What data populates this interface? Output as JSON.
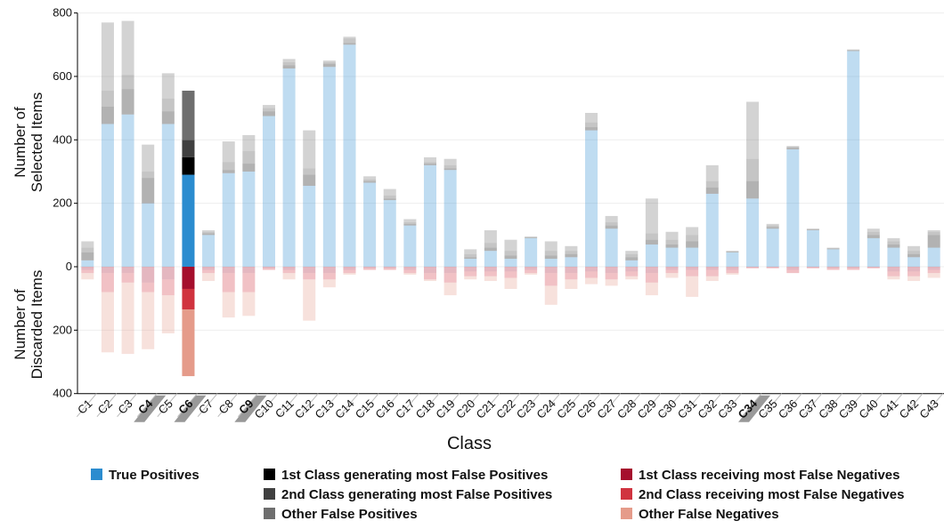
{
  "chart_data": {
    "type": "diverging-stacked-bar",
    "y_label_selected": [
      "Number of",
      "Selected Items"
    ],
    "y_label_discarded": [
      "Number of",
      "Discarded Items"
    ],
    "x_label": "Class",
    "categories": [
      "C1",
      "C2",
      "C3",
      "C4",
      "C5",
      "C6",
      "C7",
      "C8",
      "C9",
      "C10",
      "C11",
      "C12",
      "C13",
      "C14",
      "C15",
      "C16",
      "C17",
      "C18",
      "C19",
      "C20",
      "C21",
      "C22",
      "C23",
      "C24",
      "C25",
      "C26",
      "C27",
      "C28",
      "C29",
      "C30",
      "C31",
      "C32",
      "C33",
      "C34",
      "C35",
      "C36",
      "C37",
      "C38",
      "C39",
      "C40",
      "C41",
      "C42",
      "C43"
    ],
    "focus_category": 5,
    "highlighted_categories": [
      3,
      5,
      8,
      33
    ],
    "ylim": [
      -400,
      800
    ],
    "yticks": [
      {
        "value": -400,
        "label": "400"
      },
      {
        "value": -200,
        "label": "200"
      },
      0,
      200,
      400,
      600,
      800
    ],
    "grid": true,
    "series": [
      {
        "name": "True Positives",
        "color": "#2b8ccf",
        "side": "selected",
        "values": [
          20,
          450,
          480,
          200,
          450,
          290,
          100,
          295,
          300,
          475,
          625,
          255,
          630,
          700,
          265,
          210,
          130,
          320,
          305,
          25,
          50,
          25,
          90,
          25,
          30,
          430,
          120,
          20,
          70,
          60,
          60,
          230,
          45,
          215,
          120,
          370,
          115,
          55,
          680,
          90,
          60,
          30,
          60
        ]
      },
      {
        "name": "1st Class generating most False Positives",
        "color": "#000000",
        "side": "selected",
        "values": [
          25,
          55,
          80,
          80,
          40,
          55,
          5,
          10,
          25,
          15,
          10,
          35,
          10,
          5,
          5,
          5,
          5,
          5,
          5,
          5,
          10,
          10,
          2,
          10,
          10,
          10,
          10,
          10,
          15,
          10,
          20,
          20,
          2,
          55,
          5,
          5,
          2,
          2,
          2,
          10,
          10,
          10,
          40
        ]
      },
      {
        "name": "2nd Class generating most False Positives",
        "color": "#404040",
        "side": "selected",
        "values": [
          15,
          50,
          45,
          20,
          40,
          55,
          5,
          25,
          40,
          10,
          10,
          20,
          5,
          15,
          5,
          10,
          5,
          5,
          10,
          10,
          15,
          15,
          2,
          15,
          10,
          15,
          10,
          10,
          20,
          15,
          20,
          20,
          2,
          70,
          5,
          5,
          2,
          2,
          2,
          10,
          10,
          10,
          10
        ]
      },
      {
        "name": "Other False Positives",
        "color": "#6e6e6e",
        "side": "selected",
        "values": [
          20,
          215,
          170,
          85,
          80,
          155,
          5,
          65,
          50,
          10,
          10,
          120,
          5,
          5,
          10,
          20,
          10,
          15,
          20,
          15,
          40,
          35,
          1,
          30,
          15,
          30,
          20,
          10,
          110,
          25,
          25,
          50,
          1,
          180,
          5,
          0,
          1,
          1,
          1,
          10,
          10,
          15,
          5
        ]
      },
      {
        "name": "1st Class receiving most False Negatives",
        "color": "#a50f2d",
        "side": "discarded",
        "values": [
          10,
          20,
          20,
          50,
          40,
          70,
          10,
          20,
          20,
          5,
          10,
          20,
          20,
          10,
          5,
          5,
          10,
          20,
          20,
          15,
          15,
          15,
          10,
          20,
          20,
          15,
          20,
          15,
          20,
          10,
          10,
          10,
          10,
          3,
          3,
          10,
          3,
          5,
          5,
          3,
          15,
          15,
          10
        ]
      },
      {
        "name": "2nd Class receiving most False Negatives",
        "color": "#d0333f",
        "side": "discarded",
        "values": [
          10,
          60,
          30,
          30,
          50,
          65,
          10,
          60,
          60,
          5,
          10,
          20,
          20,
          10,
          5,
          5,
          10,
          20,
          30,
          15,
          15,
          20,
          10,
          40,
          20,
          20,
          20,
          15,
          30,
          10,
          20,
          20,
          10,
          2,
          2,
          10,
          2,
          5,
          5,
          2,
          15,
          15,
          10
        ]
      },
      {
        "name": "Other False Negatives",
        "color": "#e59b8a",
        "side": "discarded",
        "values": [
          20,
          190,
          225,
          180,
          120,
          210,
          25,
          80,
          75,
          0,
          20,
          130,
          25,
          5,
          0,
          0,
          5,
          5,
          40,
          10,
          15,
          35,
          5,
          60,
          30,
          20,
          20,
          10,
          40,
          15,
          65,
          15,
          5,
          0,
          0,
          0,
          0,
          0,
          0,
          0,
          10,
          15,
          15
        ]
      }
    ]
  }
}
